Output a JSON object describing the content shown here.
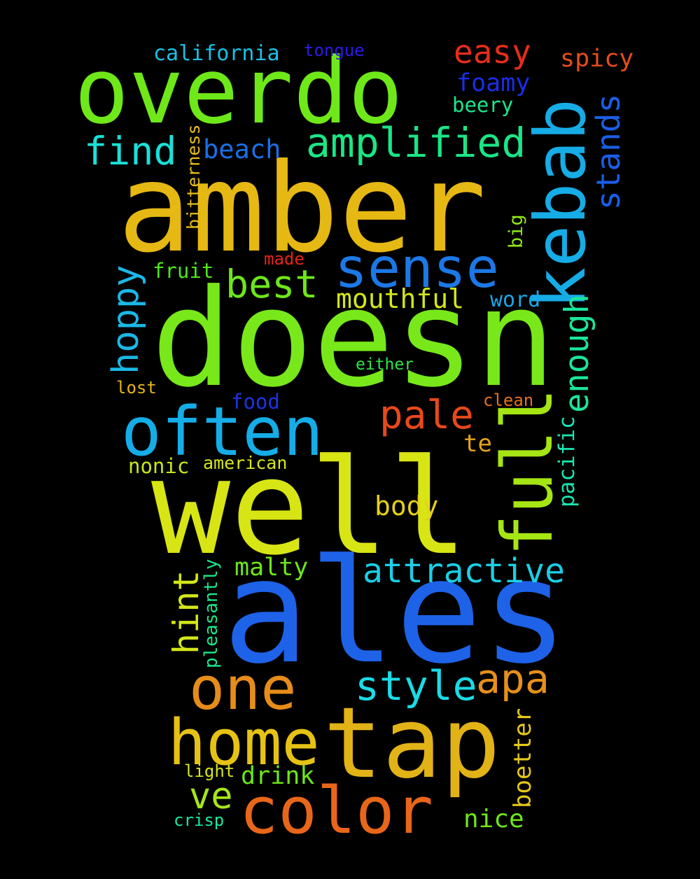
{
  "words": [
    {
      "text": "ales",
      "color": "#1e62e8"
    },
    {
      "text": "doesn",
      "color": "#78e81a"
    },
    {
      "text": "well",
      "color": "#d8e514"
    },
    {
      "text": "amber",
      "color": "#e6b813"
    },
    {
      "text": "overdo",
      "color": "#6fe81a"
    },
    {
      "text": "tap",
      "color": "#e2b317"
    },
    {
      "text": "kebab",
      "color": "#16ace6"
    },
    {
      "text": "full",
      "color": "#a6e514"
    },
    {
      "text": "often",
      "color": "#15ade8"
    },
    {
      "text": "color",
      "color": "#e8661a"
    },
    {
      "text": "home",
      "color": "#e6c214"
    },
    {
      "text": "one",
      "color": "#e68c1a"
    },
    {
      "text": "sense",
      "color": "#1c78e6"
    },
    {
      "text": "amplified",
      "color": "#1ae686"
    },
    {
      "text": "style",
      "color": "#1adbe6"
    },
    {
      "text": "pale",
      "color": "#e8481a"
    },
    {
      "text": "apa",
      "color": "#e6901a"
    },
    {
      "text": "best",
      "color": "#6de61a"
    },
    {
      "text": "attractive",
      "color": "#1acfe6"
    },
    {
      "text": "find",
      "color": "#1ae0d8"
    },
    {
      "text": "hoppy",
      "color": "#1ab8e6"
    },
    {
      "text": "enough",
      "color": "#1ae69a"
    },
    {
      "text": "stands",
      "color": "#1a5ee6"
    },
    {
      "text": "hint",
      "color": "#d3e61a"
    },
    {
      "text": "easy",
      "color": "#e62d1a"
    },
    {
      "text": "ve",
      "color": "#a6e61a"
    },
    {
      "text": "beach",
      "color": "#1a70e6"
    },
    {
      "text": "mouthful",
      "color": "#d3e61a"
    },
    {
      "text": "body",
      "color": "#e6d01a"
    },
    {
      "text": "malty",
      "color": "#6ce61a"
    },
    {
      "text": "drink",
      "color": "#6ce61a"
    },
    {
      "text": "nice",
      "color": "#6ce61a"
    },
    {
      "text": "spicy",
      "color": "#e64d1a"
    },
    {
      "text": "foamy",
      "color": "#1a2ee6"
    },
    {
      "text": "boetter",
      "color": "#e6c81a"
    },
    {
      "text": "california",
      "color": "#1ac0e6"
    },
    {
      "text": "pacific",
      "color": "#1ae6b3"
    },
    {
      "text": "beery",
      "color": "#1ae68c"
    },
    {
      "text": "fruit",
      "color": "#4ee61a"
    },
    {
      "text": "word",
      "color": "#1aa6e6"
    },
    {
      "text": "food",
      "color": "#1a33e6"
    },
    {
      "text": "te",
      "color": "#e6a21a"
    },
    {
      "text": "nonic",
      "color": "#c8e61a"
    },
    {
      "text": "american",
      "color": "#d8e61a"
    },
    {
      "text": "pleasantly",
      "color": "#1ae68c"
    },
    {
      "text": "big",
      "color": "#8ee61a"
    },
    {
      "text": "tongue",
      "color": "#2e1ae6"
    },
    {
      "text": "bitterness",
      "color": "#e6bd1a"
    },
    {
      "text": "made",
      "color": "#e6221a"
    },
    {
      "text": "either",
      "color": "#2ee64a"
    },
    {
      "text": "lost",
      "color": "#e6b31a"
    },
    {
      "text": "clean",
      "color": "#e6701a"
    },
    {
      "text": "light",
      "color": "#d8e61a"
    },
    {
      "text": "crisp",
      "color": "#1ae6a0"
    }
  ]
}
